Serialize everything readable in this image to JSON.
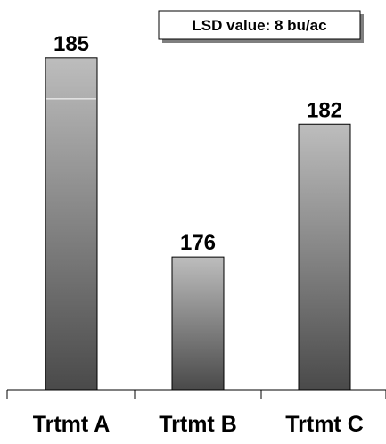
{
  "chart_data": {
    "type": "bar",
    "categories": [
      "Trtmt A",
      "Trtmt B",
      "Trtmt C"
    ],
    "values": [
      185,
      176,
      182
    ],
    "data_labels": [
      "185",
      "176",
      "182"
    ],
    "annotation": "LSD value: 8 bu/ac",
    "ylim": [
      170,
      186
    ],
    "grid": false,
    "legend": "none"
  }
}
